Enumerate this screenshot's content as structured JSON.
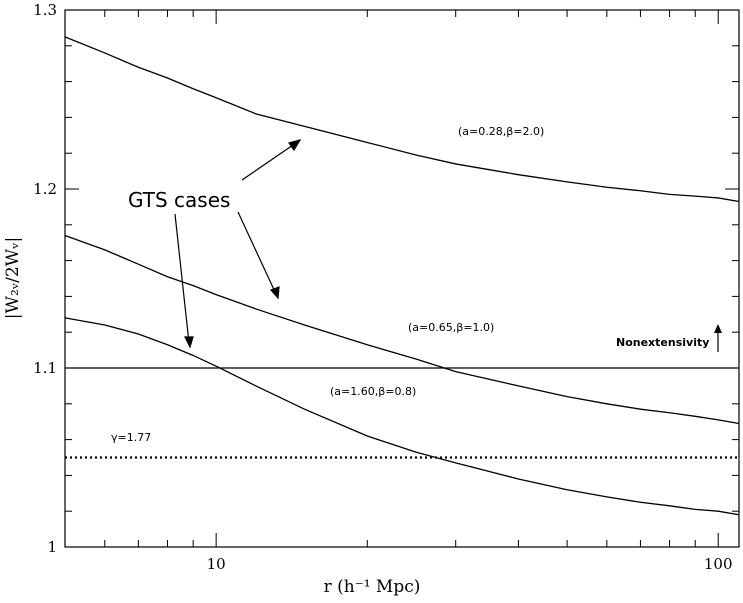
{
  "chart_data": {
    "type": "line",
    "xlabel": "r (h⁻¹ Mpc)",
    "ylabel": "|W₂ᵥ/2Wᵥ|",
    "xscale": "log",
    "xlim": [
      5,
      110
    ],
    "ylim": [
      1.0,
      1.3
    ],
    "xticks": [
      {
        "value": 10,
        "label": "10"
      },
      {
        "value": 100,
        "label": "100"
      }
    ],
    "yticks": [
      {
        "value": 1.0,
        "label": "1"
      },
      {
        "value": 1.1,
        "label": "1.1"
      },
      {
        "value": 1.2,
        "label": "1.2"
      },
      {
        "value": 1.3,
        "label": "1.3"
      }
    ],
    "grid": false,
    "series": [
      {
        "name": "(a=0.28,β=2.0)",
        "style": "solid",
        "x": [
          5,
          6,
          7,
          8,
          9,
          10,
          12,
          15,
          20,
          25,
          30,
          40,
          50,
          60,
          70,
          80,
          90,
          100,
          110
        ],
        "y": [
          1.285,
          1.276,
          1.268,
          1.262,
          1.256,
          1.251,
          1.242,
          1.235,
          1.226,
          1.219,
          1.214,
          1.208,
          1.204,
          1.201,
          1.199,
          1.197,
          1.196,
          1.195,
          1.193
        ]
      },
      {
        "name": "(a=0.65,β=1.0)",
        "style": "solid",
        "x": [
          5,
          6,
          7,
          8,
          9,
          10,
          12,
          15,
          20,
          25,
          30,
          40,
          50,
          60,
          70,
          80,
          90,
          100,
          110
        ],
        "y": [
          1.174,
          1.166,
          1.158,
          1.151,
          1.146,
          1.141,
          1.133,
          1.124,
          1.113,
          1.105,
          1.098,
          1.09,
          1.084,
          1.08,
          1.077,
          1.075,
          1.073,
          1.071,
          1.069
        ]
      },
      {
        "name": "(a=1.60,β=0.8)",
        "style": "solid",
        "x": [
          5,
          6,
          7,
          8,
          9,
          10,
          12,
          15,
          20,
          25,
          30,
          40,
          50,
          60,
          70,
          80,
          90,
          100,
          110
        ],
        "y": [
          1.128,
          1.124,
          1.119,
          1.113,
          1.107,
          1.101,
          1.09,
          1.077,
          1.062,
          1.053,
          1.047,
          1.038,
          1.032,
          1.028,
          1.025,
          1.023,
          1.021,
          1.02,
          1.018
        ]
      },
      {
        "name": "Nonextensivity",
        "style": "solid",
        "x": [
          5,
          110
        ],
        "y": [
          1.1,
          1.1
        ]
      },
      {
        "name": "γ=1.77",
        "style": "dotted",
        "x": [
          5,
          110
        ],
        "y": [
          1.05,
          1.05
        ]
      }
    ],
    "annotations": {
      "gts_label": "GTS cases",
      "nonextensivity_arrow": "↑"
    }
  }
}
